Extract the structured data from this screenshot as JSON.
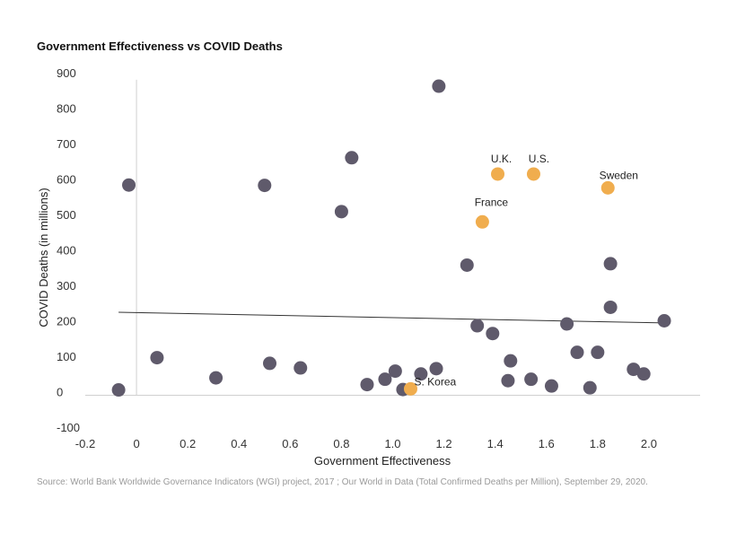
{
  "chart_data": {
    "type": "scatter",
    "title": "Government Effectiveness vs COVID Deaths",
    "xlabel": "Government Effectiveness",
    "ylabel": "COVID Deaths (in millions)",
    "source": "Source: World Bank Worldwide Governance Indicators (WGI) project, 2017 ; Our World in Data (Total Confirmed Deaths per Million), September 29, 2020.",
    "xlim": [
      -0.2,
      2.2
    ],
    "ylim": [
      -100,
      900
    ],
    "x_ticks": [
      -0.2,
      0,
      0.2,
      0.4,
      0.6,
      0.8,
      1.0,
      1.2,
      1.4,
      1.6,
      1.8,
      2.0
    ],
    "x_tick_labels": [
      "-0.2",
      "0",
      "0.2",
      "0.4",
      "0.6",
      "0.8",
      "1.0",
      "1.2",
      "1.4",
      "1.6",
      "1.8",
      "2.0"
    ],
    "y_ticks": [
      900,
      800,
      700,
      600,
      500,
      400,
      300,
      200,
      100,
      0,
      -100
    ],
    "y_tick_labels": [
      "900",
      "800",
      "700",
      "600",
      "500",
      "400",
      "300",
      "200",
      "100",
      "0",
      "-100"
    ],
    "grid": false,
    "legend": "none",
    "colors": {
      "default_point": "#5f5a6b",
      "highlight_point": "#f0ad4e",
      "trendline": "#333333",
      "axis_line": "#d0d0d0"
    },
    "trendline": {
      "x": [
        -0.07,
        2.06
      ],
      "y": [
        224,
        194
      ]
    },
    "series": [
      {
        "color_key": "default_point",
        "points": [
          {
            "x": -0.07,
            "y": 5
          },
          {
            "x": -0.03,
            "y": 583
          },
          {
            "x": 0.08,
            "y": 96
          },
          {
            "x": 0.31,
            "y": 39
          },
          {
            "x": 0.5,
            "y": 582
          },
          {
            "x": 0.52,
            "y": 80
          },
          {
            "x": 0.64,
            "y": 67
          },
          {
            "x": 0.8,
            "y": 508
          },
          {
            "x": 0.84,
            "y": 660
          },
          {
            "x": 0.9,
            "y": 20
          },
          {
            "x": 0.97,
            "y": 35
          },
          {
            "x": 1.01,
            "y": 58
          },
          {
            "x": 1.04,
            "y": 6
          },
          {
            "x": 1.11,
            "y": 50
          },
          {
            "x": 1.17,
            "y": 65
          },
          {
            "x": 1.18,
            "y": 862
          },
          {
            "x": 1.29,
            "y": 357
          },
          {
            "x": 1.33,
            "y": 186
          },
          {
            "x": 1.39,
            "y": 164
          },
          {
            "x": 1.45,
            "y": 31
          },
          {
            "x": 1.46,
            "y": 87
          },
          {
            "x": 1.54,
            "y": 35
          },
          {
            "x": 1.62,
            "y": 16
          },
          {
            "x": 1.68,
            "y": 191
          },
          {
            "x": 1.72,
            "y": 111
          },
          {
            "x": 1.77,
            "y": 11
          },
          {
            "x": 1.8,
            "y": 111
          },
          {
            "x": 1.85,
            "y": 361
          },
          {
            "x": 1.85,
            "y": 238
          },
          {
            "x": 1.94,
            "y": 63
          },
          {
            "x": 1.98,
            "y": 50
          },
          {
            "x": 2.06,
            "y": 200
          }
        ]
      },
      {
        "color_key": "highlight_point",
        "points": [
          {
            "x": 1.07,
            "y": 8,
            "label": "S. Korea"
          },
          {
            "x": 1.35,
            "y": 479,
            "label": "France"
          },
          {
            "x": 1.41,
            "y": 614,
            "label": "U.K."
          },
          {
            "x": 1.55,
            "y": 614,
            "label": "U.S."
          },
          {
            "x": 1.84,
            "y": 575,
            "label": "Sweden"
          }
        ]
      }
    ]
  }
}
